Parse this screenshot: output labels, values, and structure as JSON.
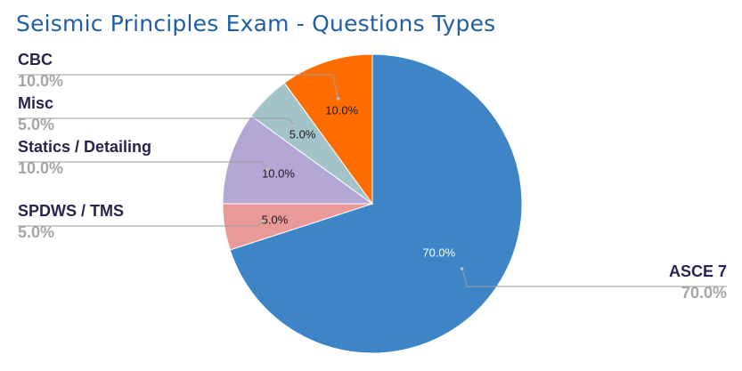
{
  "chart_data": {
    "type": "pie",
    "title": "Seismic Principles Exam - Questions Types",
    "legend_placement": "callouts",
    "slices": [
      {
        "label": "ASCE 7",
        "value": 70.0,
        "display": "70.0%",
        "color": "#3d85c6"
      },
      {
        "label": "SPDWS / TMS",
        "value": 5.0,
        "display": "5.0%",
        "color": "#ea9999"
      },
      {
        "label": "Statics / Detailing",
        "value": 10.0,
        "display": "10.0%",
        "color": "#b4a7d6"
      },
      {
        "label": "Misc",
        "value": 5.0,
        "display": "5.0%",
        "color": "#a2c4c9"
      },
      {
        "label": "CBC",
        "value": 10.0,
        "display": "10.0%",
        "color": "#ff6d01"
      }
    ]
  }
}
